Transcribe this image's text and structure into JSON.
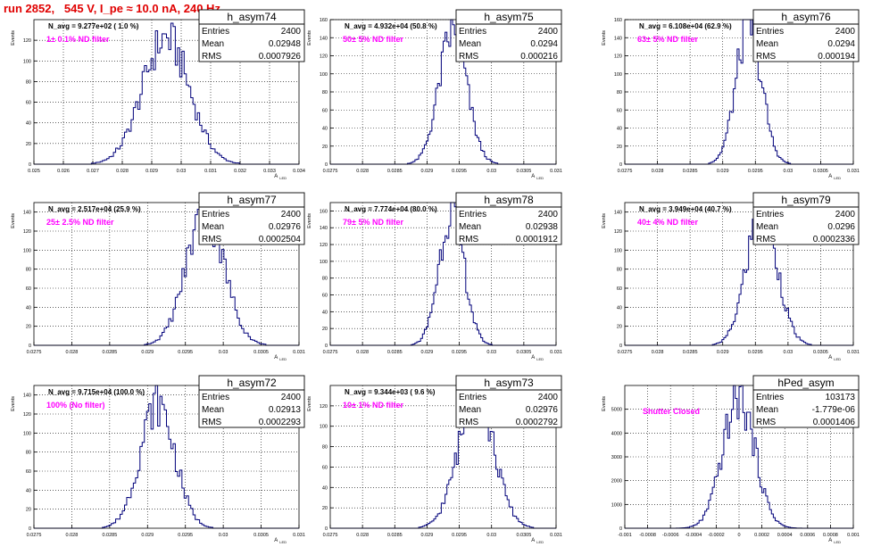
{
  "canvas_title": "run 2852,   545 V, I_pe ≈ 10.0 nA, 240 Hz",
  "colors": {
    "title": "#e00000",
    "hist_line": "#00007a",
    "annotation": "#ff00ff",
    "grid": "#000000"
  },
  "y_axis_label": "Events",
  "x_axis_label": "A",
  "x_axis_subscript": "LED",
  "stats_labels": {
    "entries": "Entries",
    "mean": "Mean",
    "rms": "RMS"
  },
  "chart_data": [
    {
      "type": "histogram",
      "name": "h_asym74",
      "navg": "N_avg = 9.277e+02 ( 1.0 %)",
      "filter": "1± 0.1% ND filter",
      "entries": "2400",
      "mean": "0.02948",
      "rms": "0.0007926",
      "xlim": [
        0.025,
        0.034
      ],
      "ylim": [
        0,
        140
      ],
      "xticks": [
        "0.025",
        "0.026",
        "0.027",
        "0.028",
        "0.029",
        "0.03",
        "0.031",
        "0.032",
        "0.033",
        "0.034"
      ],
      "yticks": [
        "0",
        "20",
        "40",
        "60",
        "80",
        "100",
        "120"
      ],
      "dist": {
        "mu": 0.02948,
        "sigma": 0.0007926,
        "peak": 122
      }
    },
    {
      "type": "histogram",
      "name": "h_asym75",
      "navg": "N_avg = 4.932e+04 (50.8 %)",
      "filter": "50± 5% ND filter",
      "entries": "2400",
      "mean": "0.0294",
      "rms": "0.000216",
      "xlim": [
        0.0275,
        0.031
      ],
      "ylim": [
        0,
        160
      ],
      "xticks": [
        "0.0275",
        "0.028",
        "0.0285",
        "0.029",
        "0.0295",
        "0.03",
        "0.0305",
        "0.031"
      ],
      "yticks": [
        "0",
        "20",
        "40",
        "60",
        "80",
        "100",
        "120",
        "140",
        "160"
      ],
      "dist": {
        "mu": 0.0294,
        "sigma": 0.000216,
        "peak": 145
      }
    },
    {
      "type": "histogram",
      "name": "h_asym76",
      "navg": "N_avg = 6.108e+04 (62.9 %)",
      "filter": "63± 5% ND filter",
      "entries": "2400",
      "mean": "0.0294",
      "rms": "0.000194",
      "xlim": [
        0.0275,
        0.031
      ],
      "ylim": [
        0,
        160
      ],
      "xticks": [
        "0.0275",
        "0.028",
        "0.0285",
        "0.029",
        "0.0295",
        "0.03",
        "0.0305",
        "0.031"
      ],
      "yticks": [
        "0",
        "20",
        "40",
        "60",
        "80",
        "100",
        "120",
        "140",
        "160"
      ],
      "dist": {
        "mu": 0.0294,
        "sigma": 0.000194,
        "peak": 155
      }
    },
    {
      "type": "histogram",
      "name": "h_asym77",
      "navg": "N_avg = 2.517e+04 (25.9 %)",
      "filter": "25± 2.5% ND filter",
      "entries": "2400",
      "mean": "0.02976",
      "rms": "0.0002504",
      "xlim": [
        0.0275,
        0.031
      ],
      "ylim": [
        0,
        150
      ],
      "xticks": [
        "0.0275",
        "0.028",
        "0.0285",
        "0.029",
        "0.0295",
        "0.03",
        "0.0305",
        "0.031"
      ],
      "yticks": [
        "0",
        "20",
        "40",
        "60",
        "80",
        "100",
        "120",
        "140"
      ],
      "dist": {
        "mu": 0.02976,
        "sigma": 0.0002504,
        "peak": 140
      }
    },
    {
      "type": "histogram",
      "name": "h_asym78",
      "navg": "N_avg = 7.774e+04 (80.0 %)",
      "filter": "79± 5% ND filter",
      "entries": "2400",
      "mean": "0.02938",
      "rms": "0.0001912",
      "xlim": [
        0.0275,
        0.031
      ],
      "ylim": [
        0,
        170
      ],
      "xticks": [
        "0.0275",
        "0.028",
        "0.0285",
        "0.029",
        "0.0295",
        "0.03",
        "0.0305",
        "0.031"
      ],
      "yticks": [
        "0",
        "20",
        "40",
        "60",
        "80",
        "100",
        "120",
        "140",
        "160"
      ],
      "dist": {
        "mu": 0.02938,
        "sigma": 0.0001912,
        "peak": 162
      }
    },
    {
      "type": "histogram",
      "name": "h_asym79",
      "navg": "N_avg = 3.949e+04 (40.7 %)",
      "filter": "40± 4% ND filter",
      "entries": "2400",
      "mean": "0.0296",
      "rms": "0.0002336",
      "xlim": [
        0.0275,
        0.031
      ],
      "ylim": [
        0,
        150
      ],
      "xticks": [
        "0.0275",
        "0.028",
        "0.0285",
        "0.029",
        "0.0295",
        "0.03",
        "0.0305",
        "0.031"
      ],
      "yticks": [
        "0",
        "20",
        "40",
        "60",
        "80",
        "100",
        "120",
        "140"
      ],
      "dist": {
        "mu": 0.0296,
        "sigma": 0.0002336,
        "peak": 143
      }
    },
    {
      "type": "histogram",
      "name": "h_asym72",
      "navg": "N_avg = 9.715e+04 (100.0 %)",
      "filter": "100% (No filter)",
      "entries": "2400",
      "mean": "0.02913",
      "rms": "0.0002293",
      "xlim": [
        0.0275,
        0.031
      ],
      "ylim": [
        0,
        150
      ],
      "xticks": [
        "0.0275",
        "0.028",
        "0.0285",
        "0.029",
        "0.0295",
        "0.03",
        "0.0305",
        "0.031"
      ],
      "yticks": [
        "0",
        "20",
        "40",
        "60",
        "80",
        "100",
        "120",
        "140"
      ],
      "dist": {
        "mu": 0.02913,
        "sigma": 0.0002293,
        "peak": 130
      }
    },
    {
      "type": "histogram",
      "name": "h_asym73",
      "navg": "N_avg = 9.344e+03 ( 9.6 %)",
      "filter": "10± 1% ND filter",
      "entries": "2400",
      "mean": "0.02976",
      "rms": "0.0002792",
      "xlim": [
        0.0275,
        0.031
      ],
      "ylim": [
        0,
        140
      ],
      "xticks": [
        "0.0275",
        "0.028",
        "0.0285",
        "0.029",
        "0.0295",
        "0.03",
        "0.0305",
        "0.031"
      ],
      "yticks": [
        "0",
        "20",
        "40",
        "60",
        "80",
        "100",
        "120"
      ],
      "dist": {
        "mu": 0.02976,
        "sigma": 0.0002792,
        "peak": 128
      }
    },
    {
      "type": "histogram",
      "name": "hPed_asym",
      "navg": "",
      "filter": "Shutter Closed",
      "entries": "103173",
      "mean": "-1.779e-06",
      "rms": "0.0001406",
      "xlim": [
        -0.001,
        0.001
      ],
      "ylim": [
        0,
        6000
      ],
      "xticks": [
        "-0.001",
        "-0.0008",
        "-0.0006",
        "-0.0004",
        "-0.0002",
        "0",
        "0.0002",
        "0.0004",
        "0.0006",
        "0.0008",
        "0.001"
      ],
      "yticks": [
        "0",
        "1000",
        "2000",
        "3000",
        "4000",
        "5000"
      ],
      "dist": {
        "mu": -1.779e-06,
        "sigma": 0.0001406,
        "peak": 5450
      }
    }
  ]
}
